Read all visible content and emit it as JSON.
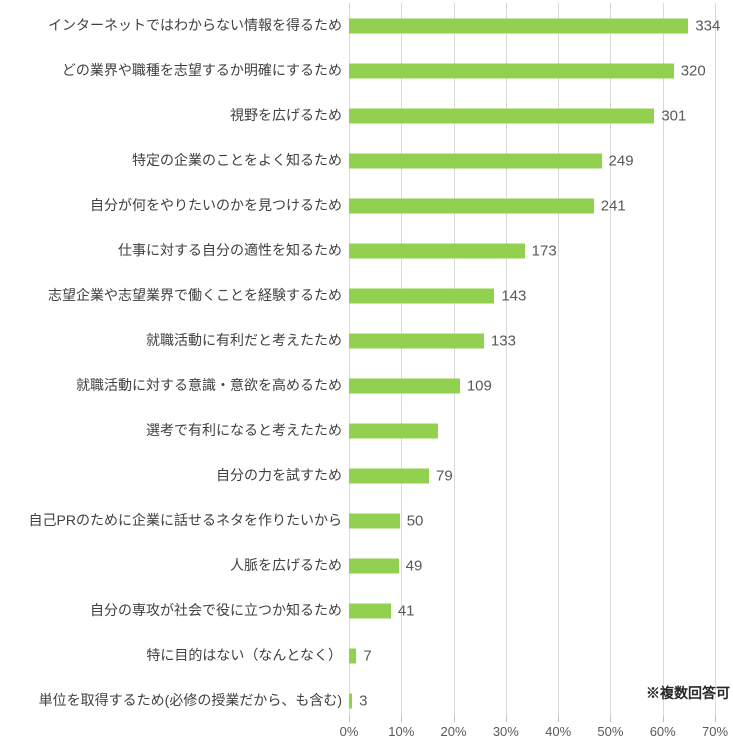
{
  "chart_data": {
    "type": "bar",
    "orientation": "horizontal",
    "title": "",
    "xlabel": "",
    "ylabel": "",
    "xlim": [
      0,
      70
    ],
    "grid": true,
    "legend": "none",
    "note": "※複数回答可",
    "categories": [
      "インターネットではわからない情報を得るため",
      "どの業界や職種を志望するか明確にするため",
      "視野を広げるため",
      "特定の企業のことをよく知るため",
      "自分が何をやりたいのかを見つけるため",
      "仕事に対する自分の適性を知るため",
      "志望企業や志望業界で働くことを経験するため",
      "就職活動に有利だと考えたため",
      "就職活動に対する意識・意欲を高めるため",
      "選考で有利になると考えたため",
      "自分の力を試すため",
      "自己PRのために企業に話せるネタを作りたいから",
      "人脈を広げるため",
      "自分の専攻が社会で役に立つか知るため",
      "特に目的はない（なんとなく）",
      "単位を取得するため(必修の授業だから、も含む)"
    ],
    "values": [
      334,
      320,
      301,
      249,
      241,
      173,
      143,
      133,
      109,
      null,
      79,
      50,
      49,
      41,
      7,
      3
    ],
    "value_labels": [
      "334",
      "320",
      "301",
      "249",
      "241",
      "173",
      "143",
      "133",
      "109",
      "",
      "79",
      "50",
      "49",
      "41",
      "7",
      "3"
    ],
    "bar_percents": [
      64.9,
      62.1,
      58.4,
      48.3,
      46.8,
      33.6,
      27.8,
      25.8,
      21.2,
      17.0,
      15.3,
      9.7,
      9.5,
      8.0,
      1.4,
      0.6
    ],
    "x_ticks": [
      "0%",
      "10%",
      "20%",
      "30%",
      "40%",
      "50%",
      "60%",
      "70%"
    ],
    "x_tick_values": [
      0,
      10,
      20,
      30,
      40,
      50,
      60,
      70
    ],
    "colors": {
      "bar": "#92d050",
      "gridline": "#d9d9d9",
      "tick": "#bfbfbf",
      "category_text": "#404040",
      "value_text": "#595959",
      "axis_text": "#595959",
      "note_text": "#262626",
      "background": "#ffffff"
    }
  }
}
